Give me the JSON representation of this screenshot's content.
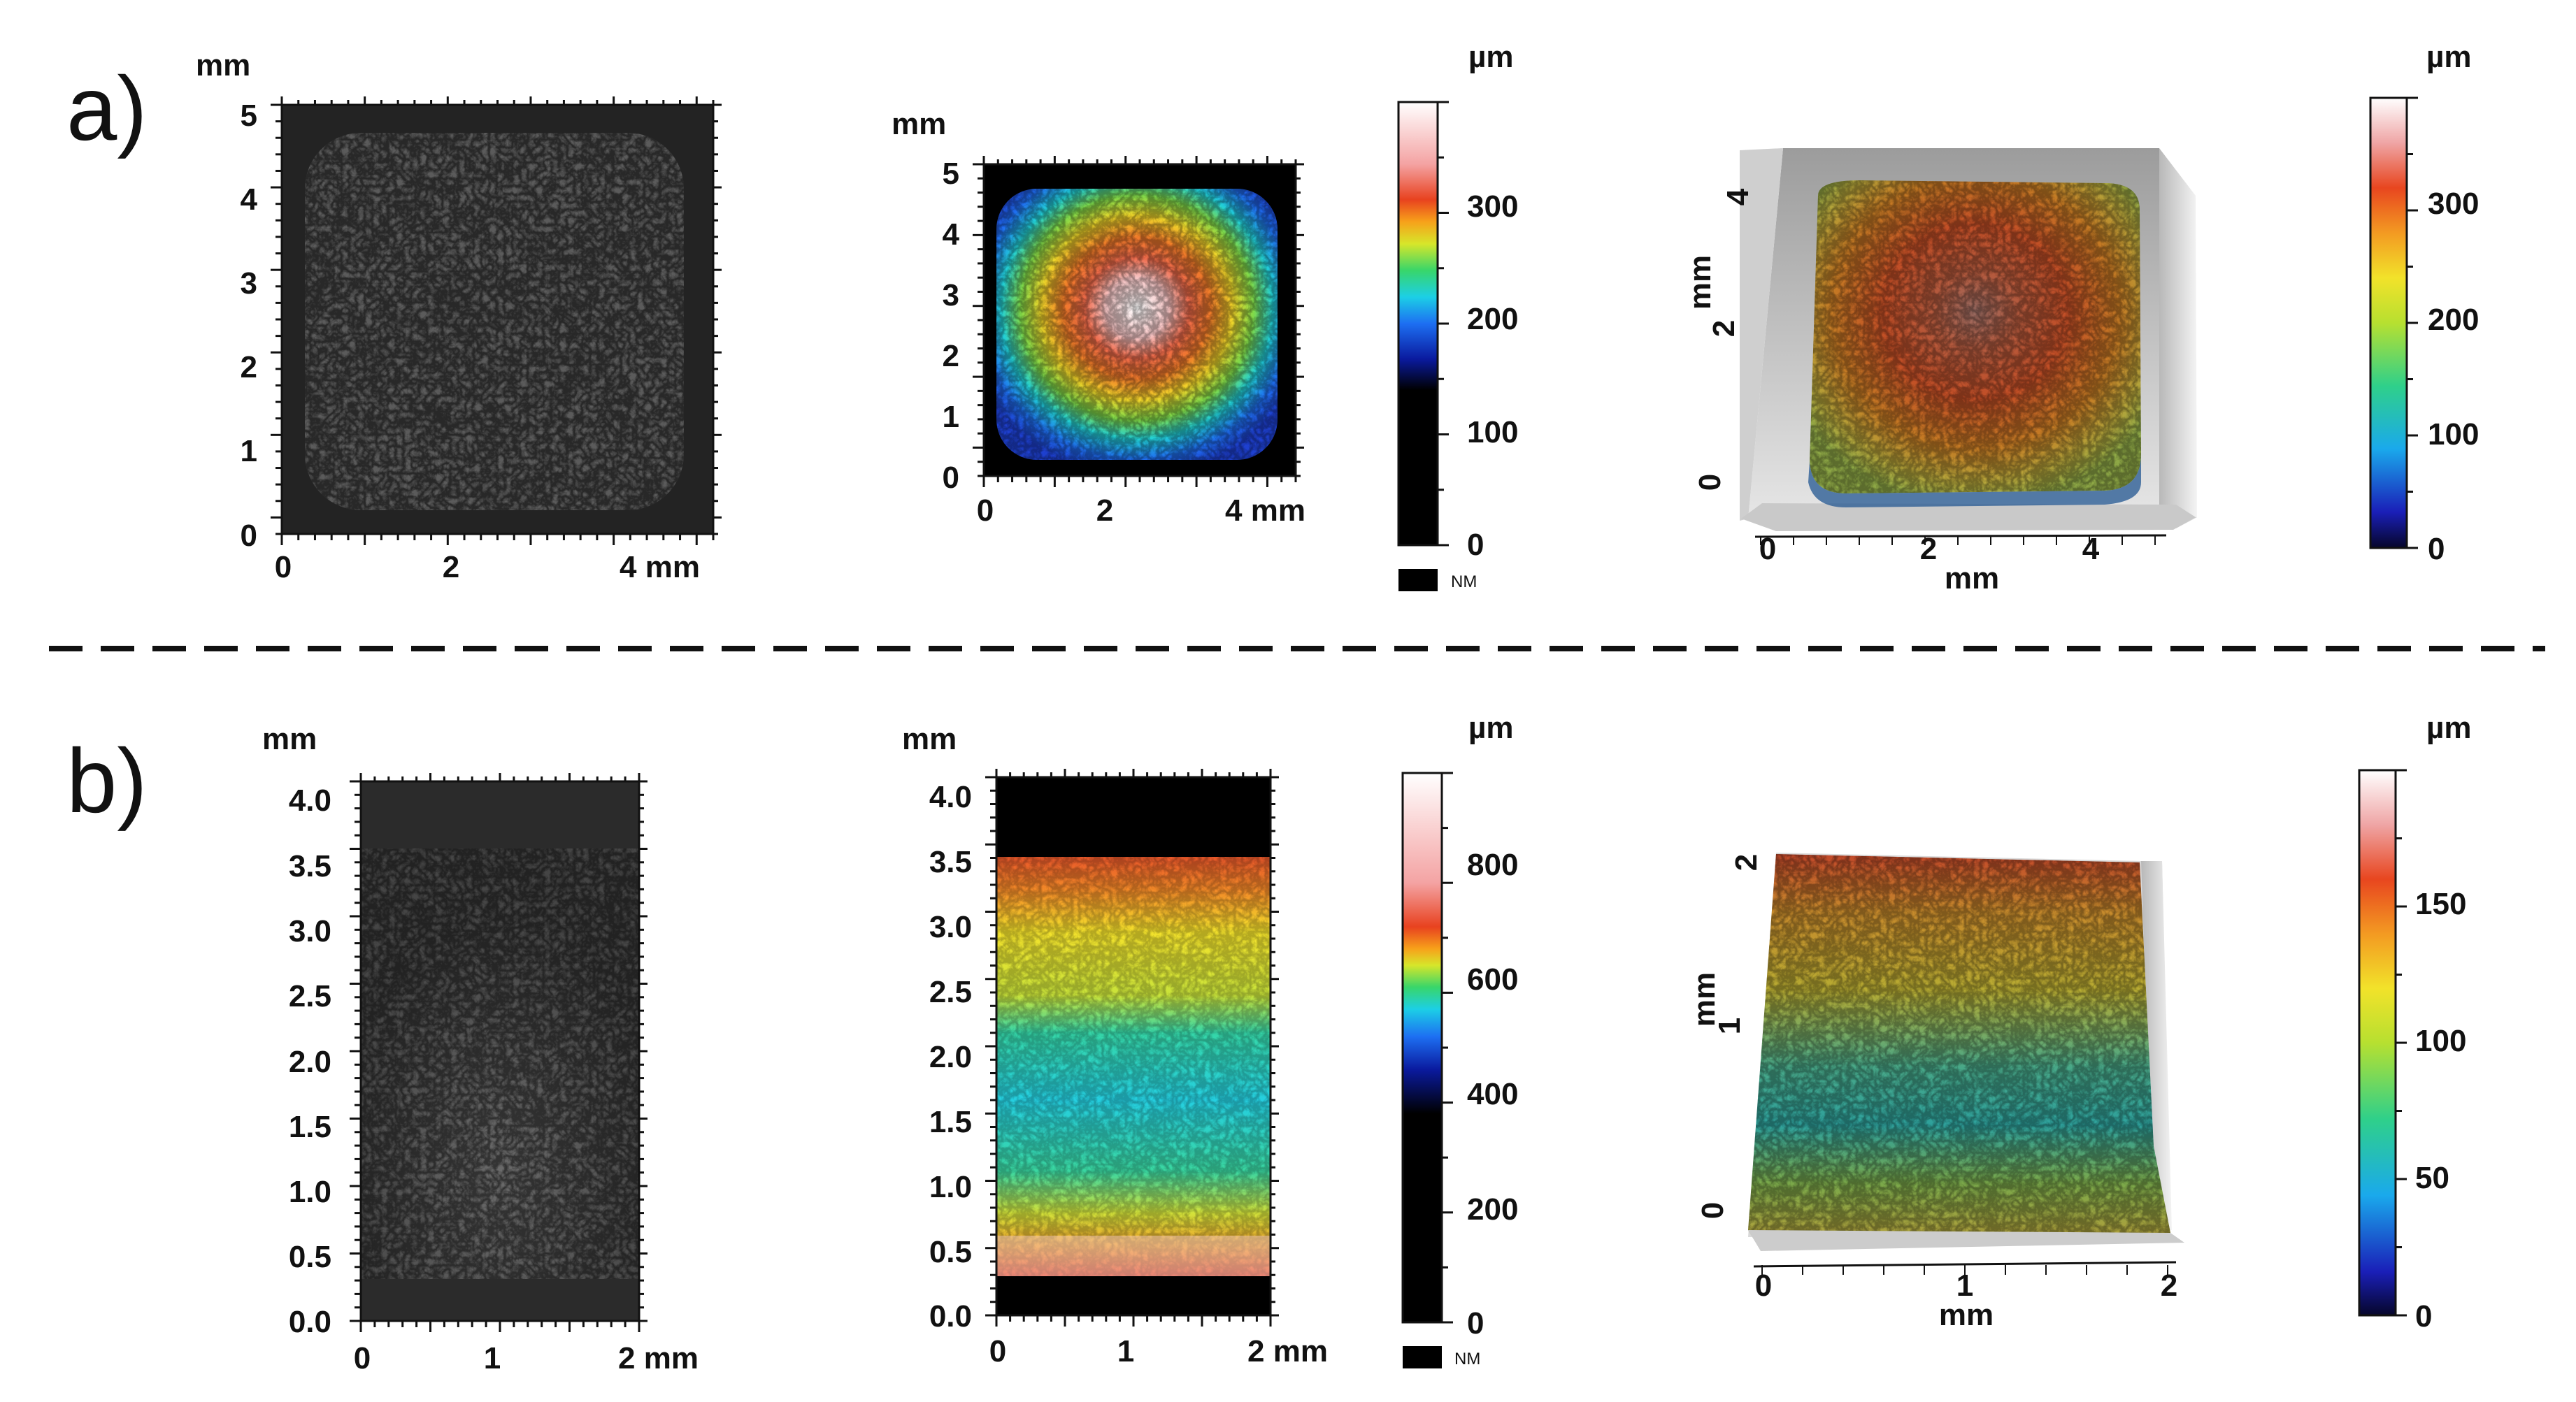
{
  "figure": {
    "separator": "dashed",
    "rows": [
      {
        "label": "a)",
        "optical": {
          "unit_label": "mm",
          "x_ticks": [
            "0",
            "2",
            "4 mm"
          ],
          "y_ticks": [
            "0",
            "1",
            "2",
            "3",
            "4",
            "5"
          ]
        },
        "heightmap": {
          "unit_label": "mm",
          "x_ticks": [
            "0",
            "2",
            "4 mm"
          ],
          "y_ticks": [
            "0",
            "1",
            "2",
            "3",
            "4",
            "5"
          ]
        },
        "colorbar_2d": {
          "unit": "µm",
          "ticks": [
            "0",
            "100",
            "200",
            "300"
          ],
          "nm_label": "NM"
        },
        "view3d": {
          "axis_title": "mm",
          "x_ticks": [
            "0",
            "2",
            "4"
          ],
          "y_ticks": [
            "0",
            "2",
            "4"
          ],
          "y_axis_title": "mm"
        },
        "colorbar_3d": {
          "unit": "µm",
          "ticks": [
            "0",
            "100",
            "200",
            "300"
          ]
        }
      },
      {
        "label": "b)",
        "optical": {
          "unit_label": "mm",
          "x_ticks": [
            "0",
            "1",
            "2 mm"
          ],
          "y_ticks": [
            "0.0",
            "0.5",
            "1.0",
            "1.5",
            "2.0",
            "2.5",
            "3.0",
            "3.5",
            "4.0"
          ]
        },
        "heightmap": {
          "unit_label": "mm",
          "x_ticks": [
            "0",
            "1",
            "2 mm"
          ],
          "y_ticks": [
            "0.0",
            "0.5",
            "1.0",
            "1.5",
            "2.0",
            "2.5",
            "3.0",
            "3.5",
            "4.0"
          ]
        },
        "colorbar_2d": {
          "unit": "µm",
          "ticks": [
            "0",
            "200",
            "400",
            "600",
            "800"
          ],
          "nm_label": "NM"
        },
        "view3d": {
          "axis_title": "mm",
          "x_ticks": [
            "0",
            "1",
            "2"
          ],
          "y_ticks": [
            "0",
            "1",
            "2"
          ],
          "y_axis_title": "mm"
        },
        "colorbar_3d": {
          "unit": "µm",
          "ticks": [
            "0",
            "50",
            "100",
            "150"
          ]
        }
      }
    ]
  }
}
